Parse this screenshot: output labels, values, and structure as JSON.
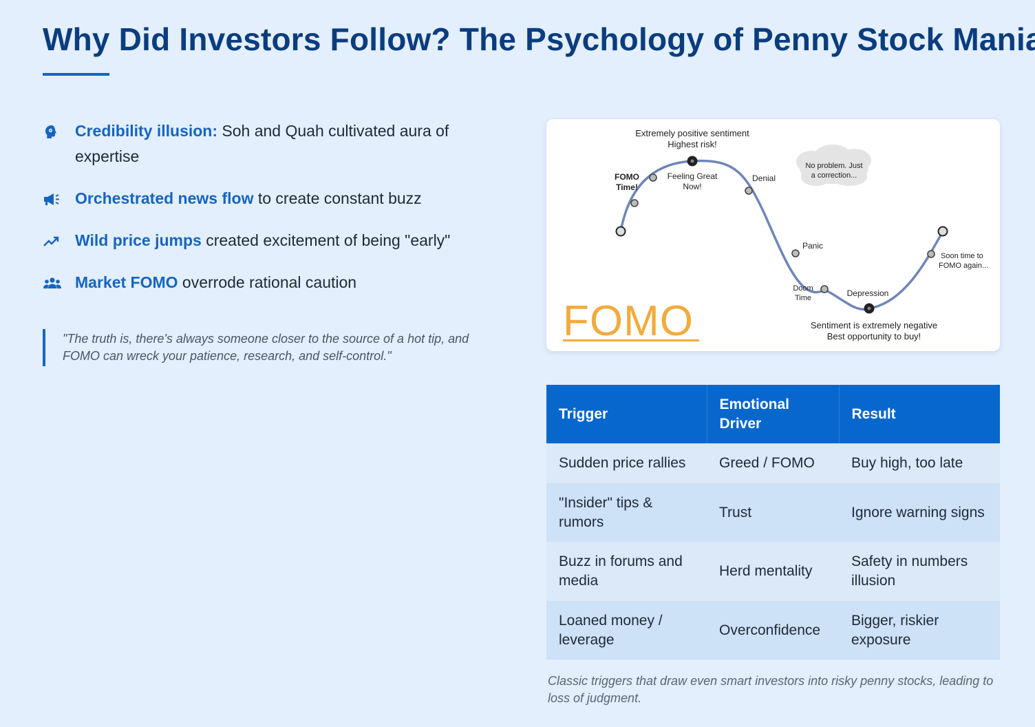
{
  "page": {
    "title": "Why Did Investors Follow? The Psychology of Penny Stock Mania"
  },
  "bullets": [
    {
      "icon": "brain-head-icon",
      "highlight": "Credibility illusion:",
      "text": " Soh and Quah cultivated aura of expertise"
    },
    {
      "icon": "megaphone-icon",
      "highlight": "Orchestrated news flow",
      "text": " to create constant buzz"
    },
    {
      "icon": "trending-up-icon",
      "highlight": "Wild price jumps",
      "text": " created excitement of being \"early\""
    },
    {
      "icon": "people-group-icon",
      "highlight": "Market FOMO",
      "text": " overrode rational caution"
    }
  ],
  "quote": "\"The truth is, there's always someone closer to the source of a hot tip, and FOMO can wreck your patience, research, and self-control.\"",
  "chart": {
    "wordmark": "FOMO",
    "labels": {
      "top_line1": "Extremely positive sentiment",
      "top_line2": "Highest risk!",
      "fomo_line1": "FOMO",
      "fomo_line2": "Time!",
      "feeling_line1": "Feeling Great",
      "feeling_line2": "Now!",
      "denial": "Denial",
      "cloud_line1": "No problem. Just",
      "cloud_line2": "a correction...",
      "panic": "Panic",
      "doom_line1": "Doom",
      "doom_line2": "Time",
      "depression": "Depression",
      "soon_line1": "Soon time to",
      "soon_line2": "FOMO again...",
      "bottom_line1": "Sentiment is extremely negative",
      "bottom_line2": "Best opportunity to buy!"
    },
    "colors": {
      "curve": "#6f86b8",
      "wordmark": "#f2ab3c"
    }
  },
  "table": {
    "headers": [
      "Trigger",
      "Emotional Driver",
      "Result"
    ],
    "rows": [
      [
        "Sudden price rallies",
        "Greed / FOMO",
        "Buy high, too late"
      ],
      [
        "\"Insider\" tips & rumors",
        "Trust",
        "Ignore warning signs"
      ],
      [
        "Buzz in forums and media",
        "Herd mentality",
        "Safety in numbers illusion"
      ],
      [
        "Loaned money / leverage",
        "Overconfidence",
        "Bigger, riskier exposure"
      ]
    ]
  },
  "caption": "Classic triggers that draw even smart investors into risky penny stocks, leading to loss of judgment.",
  "colors": {
    "accent": "#1565c0",
    "title": "#0b3d7e",
    "background": "#e3effc",
    "table_header": "#0767cc"
  }
}
